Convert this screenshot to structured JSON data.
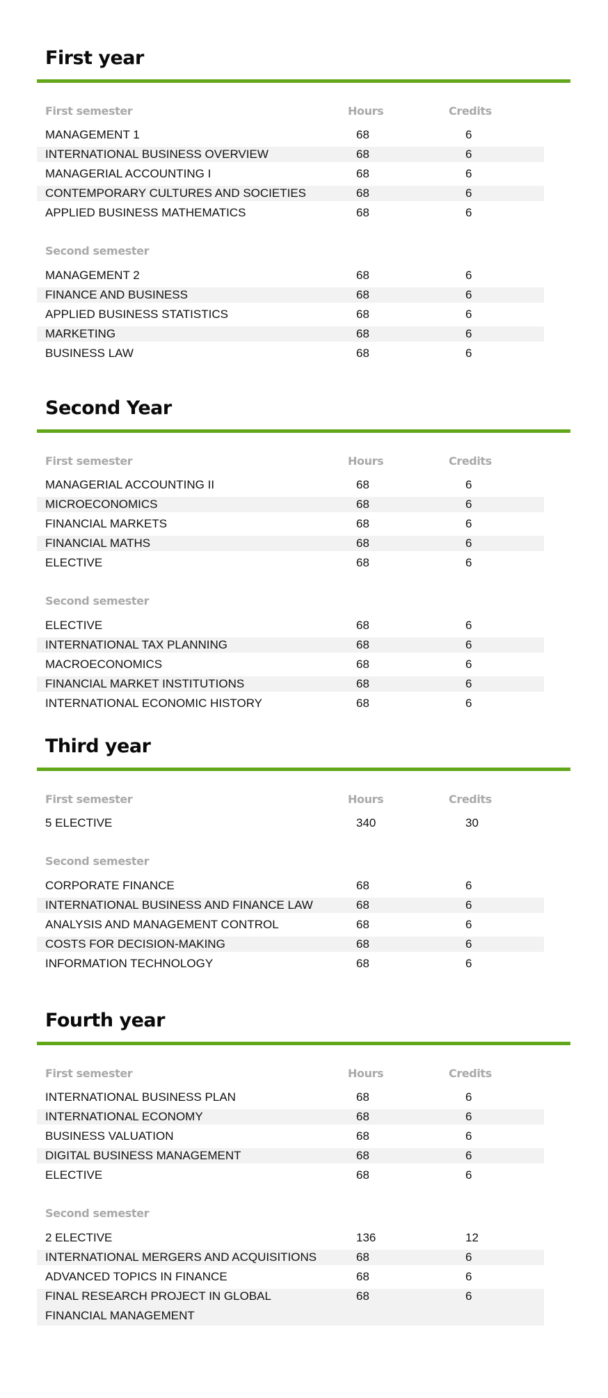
{
  "colors": {
    "accent": "#62a61a",
    "shade": "#f2f2f2",
    "header_text": "#a9a9a9"
  },
  "column_labels": {
    "hours": "Hours",
    "credits": "Credits"
  },
  "years": [
    {
      "title": "First year",
      "semesters": [
        {
          "label": "First semester",
          "show_cols": true,
          "courses": [
            {
              "name": "MANAGEMENT 1",
              "hours": "68",
              "credits": "6"
            },
            {
              "name": "INTERNATIONAL BUSINESS OVERVIEW",
              "hours": "68",
              "credits": "6"
            },
            {
              "name": "MANAGERIAL ACCOUNTING I",
              "hours": "68",
              "credits": "6"
            },
            {
              "name": "CONTEMPORARY CULTURES AND SOCIETIES",
              "hours": "68",
              "credits": "6"
            },
            {
              "name": "APPLIED BUSINESS MATHEMATICS",
              "hours": "68",
              "credits": "6"
            }
          ]
        },
        {
          "label": "Second semester",
          "show_cols": false,
          "courses": [
            {
              "name": "MANAGEMENT 2",
              "hours": "68",
              "credits": "6"
            },
            {
              "name": "FINANCE AND BUSINESS",
              "hours": "68",
              "credits": "6"
            },
            {
              "name": "APPLIED BUSINESS STATISTICS",
              "hours": "68",
              "credits": "6"
            },
            {
              "name": "MARKETING",
              "hours": "68",
              "credits": "6"
            },
            {
              "name": "BUSINESS LAW",
              "hours": "68",
              "credits": "6"
            }
          ]
        }
      ]
    },
    {
      "title": "Second Year",
      "semesters": [
        {
          "label": "First semester",
          "show_cols": true,
          "courses": [
            {
              "name": "MANAGERIAL ACCOUNTING II",
              "hours": "68",
              "credits": "6"
            },
            {
              "name": "MICROECONOMICS",
              "hours": "68",
              "credits": "6"
            },
            {
              "name": "FINANCIAL MARKETS",
              "hours": "68",
              "credits": "6"
            },
            {
              "name": "FINANCIAL MATHS",
              "hours": "68",
              "credits": "6"
            },
            {
              "name": "ELECTIVE",
              "hours": "68",
              "credits": "6"
            }
          ]
        },
        {
          "label": "Second semester",
          "show_cols": false,
          "courses": [
            {
              "name": "ELECTIVE",
              "hours": "68",
              "credits": "6"
            },
            {
              "name": "INTERNATIONAL TAX PLANNING",
              "hours": "68",
              "credits": "6"
            },
            {
              "name": "MACROECONOMICS",
              "hours": "68",
              "credits": "6"
            },
            {
              "name": "FINANCIAL MARKET INSTITUTIONS",
              "hours": "68",
              "credits": "6"
            },
            {
              "name": "INTERNATIONAL ECONOMIC HISTORY",
              "hours": "68",
              "credits": "6"
            }
          ]
        }
      ]
    },
    {
      "title": "Third year",
      "semesters": [
        {
          "label": "First semester",
          "show_cols": true,
          "courses": [
            {
              "name": "5 ELECTIVE",
              "hours": "340",
              "credits": "30"
            }
          ]
        },
        {
          "label": "Second semester",
          "show_cols": false,
          "courses": [
            {
              "name": "CORPORATE FINANCE",
              "hours": "68",
              "credits": "6"
            },
            {
              "name": "INTERNATIONAL BUSINESS AND FINANCE LAW",
              "hours": "68",
              "credits": "6"
            },
            {
              "name": "ANALYSIS AND MANAGEMENT CONTROL",
              "hours": "68",
              "credits": "6"
            },
            {
              "name": "COSTS FOR DECISION-MAKING",
              "hours": "68",
              "credits": "6"
            },
            {
              "name": "INFORMATION TECHNOLOGY",
              "hours": "68",
              "credits": "6"
            }
          ]
        }
      ]
    },
    {
      "title": "Fourth year",
      "semesters": [
        {
          "label": "First semester",
          "show_cols": true,
          "courses": [
            {
              "name": "INTERNATIONAL BUSINESS PLAN",
              "hours": "68",
              "credits": "6"
            },
            {
              "name": "INTERNATIONAL ECONOMY",
              "hours": "68",
              "credits": "6"
            },
            {
              "name": "BUSINESS VALUATION",
              "hours": "68",
              "credits": "6"
            },
            {
              "name": "DIGITAL BUSINESS MANAGEMENT",
              "hours": "68",
              "credits": "6"
            },
            {
              "name": "ELECTIVE",
              "hours": "68",
              "credits": "6"
            }
          ]
        },
        {
          "label": "Second semester",
          "show_cols": false,
          "courses": [
            {
              "name": "2 ELECTIVE",
              "hours": "136",
              "credits": "12"
            },
            {
              "name": "INTERNATIONAL MERGERS AND ACQUISITIONS",
              "hours": "68",
              "credits": "6"
            },
            {
              "name": "ADVANCED TOPICS IN FINANCE",
              "hours": "68",
              "credits": "6"
            },
            {
              "name": "FINAL RESEARCH PROJECT IN GLOBAL FINANCIAL MANAGEMENT",
              "hours": "68",
              "credits": "6"
            }
          ]
        }
      ]
    }
  ]
}
